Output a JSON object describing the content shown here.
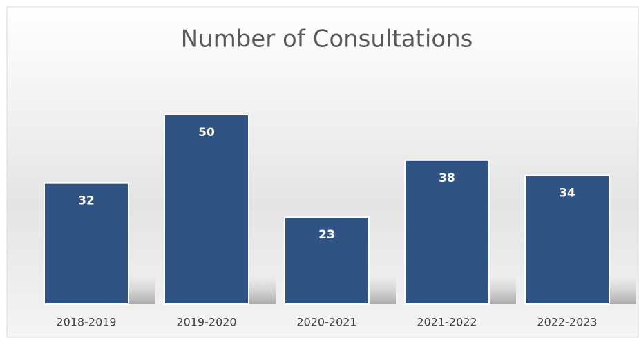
{
  "chart_data": {
    "type": "bar",
    "title": "Number of Consultations",
    "categories": [
      "2018-2019",
      "2019-2020",
      "2020-2021",
      "2021-2022",
      "2022-2023"
    ],
    "values": [
      32,
      50,
      23,
      38,
      34
    ],
    "color": "#2f5484"
  }
}
